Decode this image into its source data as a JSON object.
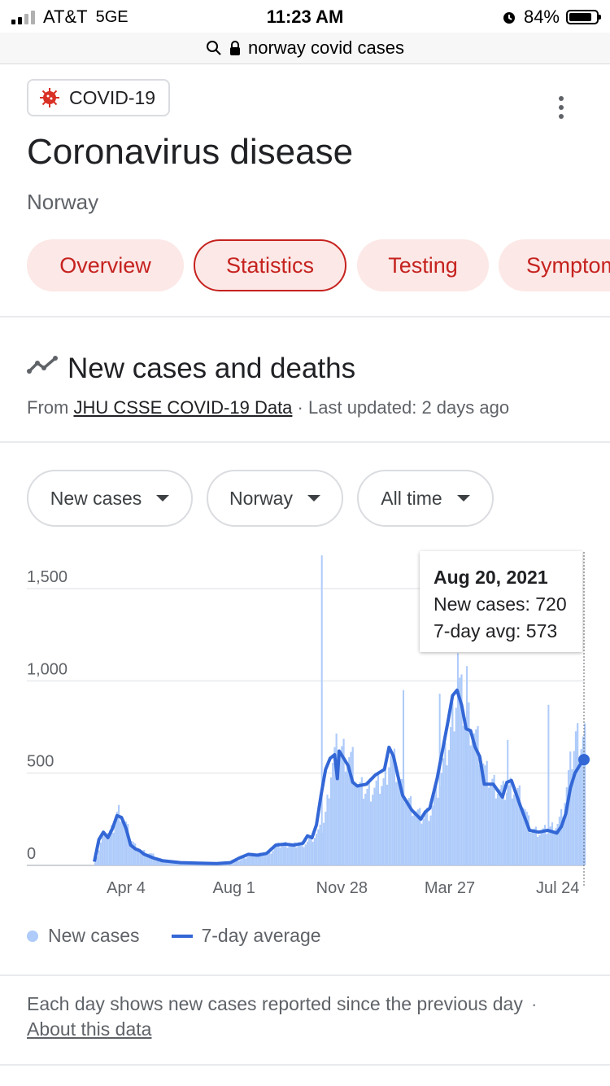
{
  "status_bar": {
    "carrier": "AT&T",
    "network": "5GE",
    "time": "11:23 AM",
    "battery": "84%",
    "battery_level": 0.84,
    "signal_bars": 2
  },
  "url_bar": {
    "query": "norway covid cases"
  },
  "topic_chip": {
    "label": "COVID-19",
    "icon": "virus-icon"
  },
  "header": {
    "title": "Coronavirus disease",
    "subtitle": "Norway"
  },
  "tabs": [
    {
      "label": "Overview",
      "active": false
    },
    {
      "label": "Statistics",
      "active": true
    },
    {
      "label": "Testing",
      "active": false
    },
    {
      "label": "Symptoms",
      "active": false
    }
  ],
  "section": {
    "title": "New cases and deaths",
    "source_prefix": "From",
    "source_link": "JHU CSSE COVID-19 Data",
    "separator": "·",
    "updated": "Last updated: 2 days ago"
  },
  "filters": [
    {
      "label": "New cases"
    },
    {
      "label": "Norway"
    },
    {
      "label": "All time"
    }
  ],
  "tooltip": {
    "date": "Aug 20, 2021",
    "new_cases": "New cases: 720",
    "avg": "7-day avg: 573"
  },
  "legend": {
    "bars": "New cases",
    "line": "7-day average"
  },
  "footnote": {
    "text": "Each day shows new cases reported since the previous day",
    "separator": "·",
    "link": "About this data"
  },
  "colors": {
    "accent_red": "#c5221f",
    "chip_bg": "#fce8e6",
    "bar_color": "#aecbfa",
    "line_color": "#3367d6"
  },
  "chart_data": {
    "type": "bar",
    "ylim": [
      0,
      1500
    ],
    "yticks": [
      "0",
      "500",
      "1,000",
      "1,500"
    ],
    "xticks": [
      "Apr 4",
      "Aug 1",
      "Nov 28",
      "Mar 27",
      "Jul 24"
    ],
    "days_total": 540,
    "xtick_days": [
      35,
      154,
      273,
      392,
      511
    ],
    "series": [
      {
        "name": "New cases",
        "kind": "bars",
        "points": [
          [
            0,
            20
          ],
          [
            5,
            100
          ],
          [
            10,
            190
          ],
          [
            15,
            170
          ],
          [
            20,
            200
          ],
          [
            25,
            300
          ],
          [
            30,
            270
          ],
          [
            35,
            210
          ],
          [
            40,
            140
          ],
          [
            45,
            100
          ],
          [
            50,
            80
          ],
          [
            60,
            65
          ],
          [
            70,
            40
          ],
          [
            80,
            20
          ],
          [
            100,
            15
          ],
          [
            120,
            12
          ],
          [
            140,
            10
          ],
          [
            150,
            12
          ],
          [
            160,
            30
          ],
          [
            170,
            55
          ],
          [
            180,
            65
          ],
          [
            190,
            55
          ],
          [
            200,
            105
          ],
          [
            210,
            115
          ],
          [
            220,
            110
          ],
          [
            230,
            120
          ],
          [
            240,
            150
          ],
          [
            250,
            200
          ],
          [
            255,
            300
          ],
          [
            260,
            520
          ],
          [
            265,
            620
          ],
          [
            270,
            640
          ],
          [
            275,
            620
          ],
          [
            280,
            600
          ],
          [
            285,
            560
          ],
          [
            290,
            420
          ],
          [
            300,
            400
          ],
          [
            310,
            430
          ],
          [
            320,
            470
          ],
          [
            325,
            620
          ],
          [
            330,
            560
          ],
          [
            340,
            400
          ],
          [
            350,
            320
          ],
          [
            360,
            260
          ],
          [
            370,
            300
          ],
          [
            380,
            460
          ],
          [
            390,
            650
          ],
          [
            395,
            830
          ],
          [
            400,
            1000
          ],
          [
            405,
            880
          ],
          [
            410,
            820
          ],
          [
            415,
            780
          ],
          [
            420,
            700
          ],
          [
            425,
            620
          ],
          [
            430,
            500
          ],
          [
            440,
            440
          ],
          [
            450,
            400
          ],
          [
            460,
            440
          ],
          [
            470,
            370
          ],
          [
            480,
            200
          ],
          [
            490,
            180
          ],
          [
            500,
            200
          ],
          [
            510,
            230
          ],
          [
            515,
            280
          ],
          [
            520,
            420
          ],
          [
            525,
            560
          ],
          [
            530,
            700
          ],
          [
            535,
            680
          ],
          [
            540,
            720
          ]
        ],
        "spikes": [
          [
            250,
            1680
          ],
          [
            400,
            1150
          ],
          [
            410,
            1080
          ],
          [
            340,
            950
          ],
          [
            380,
            930
          ],
          [
            500,
            870
          ],
          [
            455,
            680
          ]
        ]
      },
      {
        "name": "7-day average",
        "kind": "line",
        "points": [
          [
            0,
            20
          ],
          [
            5,
            140
          ],
          [
            10,
            180
          ],
          [
            15,
            150
          ],
          [
            20,
            200
          ],
          [
            25,
            270
          ],
          [
            30,
            260
          ],
          [
            35,
            200
          ],
          [
            40,
            110
          ],
          [
            45,
            90
          ],
          [
            50,
            80
          ],
          [
            55,
            60
          ],
          [
            65,
            40
          ],
          [
            75,
            25
          ],
          [
            95,
            15
          ],
          [
            115,
            12
          ],
          [
            135,
            10
          ],
          [
            150,
            15
          ],
          [
            160,
            40
          ],
          [
            170,
            60
          ],
          [
            180,
            55
          ],
          [
            190,
            65
          ],
          [
            200,
            110
          ],
          [
            210,
            115
          ],
          [
            220,
            110
          ],
          [
            230,
            120
          ],
          [
            235,
            160
          ],
          [
            240,
            150
          ],
          [
            245,
            220
          ],
          [
            250,
            380
          ],
          [
            255,
            520
          ],
          [
            260,
            580
          ],
          [
            265,
            600
          ],
          [
            268,
            470
          ],
          [
            270,
            620
          ],
          [
            275,
            580
          ],
          [
            280,
            540
          ],
          [
            285,
            450
          ],
          [
            290,
            430
          ],
          [
            300,
            440
          ],
          [
            310,
            490
          ],
          [
            320,
            520
          ],
          [
            325,
            640
          ],
          [
            330,
            590
          ],
          [
            335,
            480
          ],
          [
            340,
            380
          ],
          [
            350,
            300
          ],
          [
            360,
            250
          ],
          [
            365,
            290
          ],
          [
            370,
            310
          ],
          [
            378,
            470
          ],
          [
            385,
            650
          ],
          [
            390,
            780
          ],
          [
            395,
            920
          ],
          [
            400,
            950
          ],
          [
            405,
            870
          ],
          [
            410,
            740
          ],
          [
            415,
            730
          ],
          [
            420,
            640
          ],
          [
            425,
            590
          ],
          [
            430,
            440
          ],
          [
            440,
            440
          ],
          [
            450,
            370
          ],
          [
            455,
            450
          ],
          [
            460,
            460
          ],
          [
            470,
            320
          ],
          [
            480,
            190
          ],
          [
            490,
            180
          ],
          [
            500,
            190
          ],
          [
            510,
            175
          ],
          [
            515,
            210
          ],
          [
            520,
            280
          ],
          [
            525,
            420
          ],
          [
            530,
            500
          ],
          [
            535,
            540
          ],
          [
            540,
            573
          ]
        ]
      }
    ],
    "highlight": {
      "day": 540,
      "value": 573
    }
  }
}
